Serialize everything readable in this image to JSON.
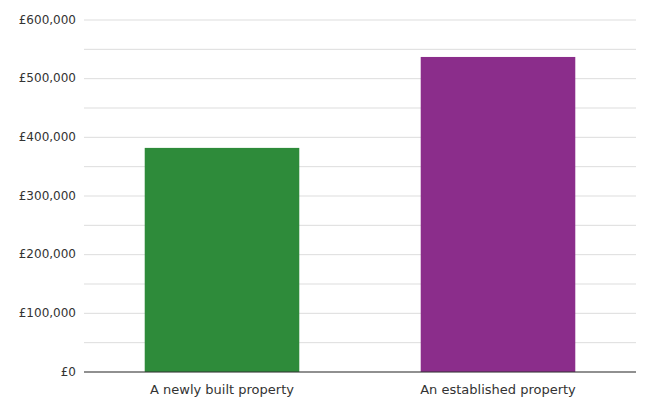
{
  "chart_data": {
    "type": "bar",
    "categories": [
      "A newly built property",
      "An established property"
    ],
    "values": [
      382000,
      537000
    ],
    "colors": [
      "#2e8b3a",
      "#8b2d8b"
    ],
    "ylim": [
      0,
      600000
    ],
    "yticks": [
      {
        "value": 0,
        "label": "£0"
      },
      {
        "value": 50000,
        "label": null
      },
      {
        "value": 100000,
        "label": "£100,000"
      },
      {
        "value": 150000,
        "label": null
      },
      {
        "value": 200000,
        "label": "£200,000"
      },
      {
        "value": 250000,
        "label": null
      },
      {
        "value": 300000,
        "label": "£300,000"
      },
      {
        "value": 350000,
        "label": null
      },
      {
        "value": 400000,
        "label": "£400,000"
      },
      {
        "value": 450000,
        "label": null
      },
      {
        "value": 500000,
        "label": "£500,000"
      },
      {
        "value": 550000,
        "label": null
      },
      {
        "value": 600000,
        "label": "£600,000"
      }
    ],
    "grid": true
  }
}
